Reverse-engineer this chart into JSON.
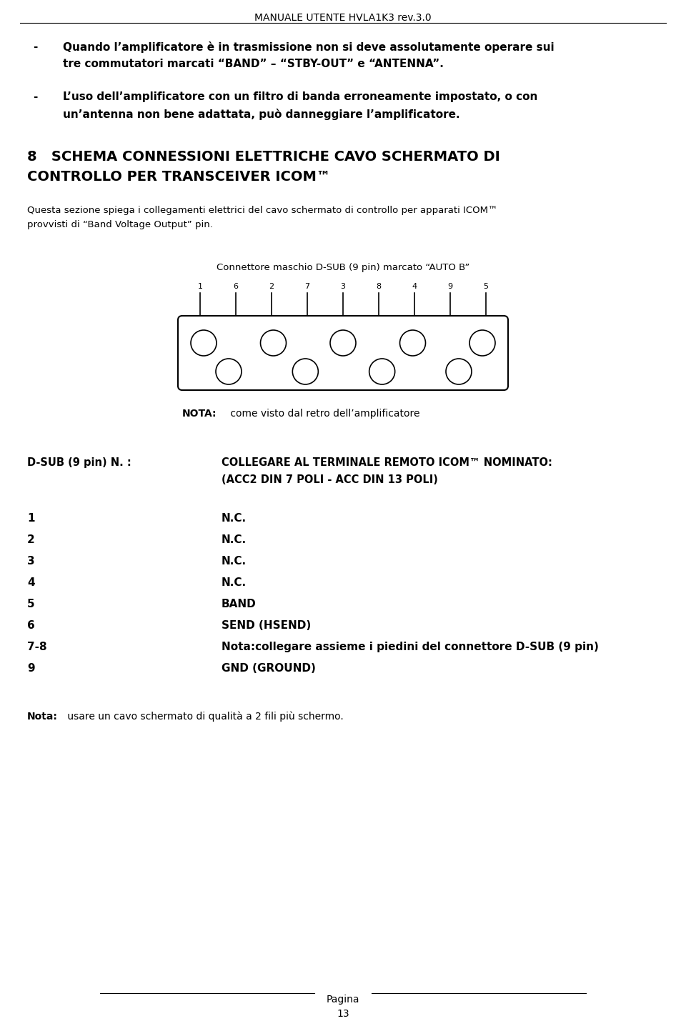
{
  "page_title": "MANUALE UTENTE HVLA1K3 rev.3.0",
  "page_number": "13",
  "bg_color": "#ffffff",
  "text_color": "#000000",
  "bullet1_line1": "Quando l’amplificatore è in trasmissione non si deve assolutamente operare sui",
  "bullet1_line2": "tre commutatori marcati “BAND” – “STBY-OUT” e “ANTENNA”.",
  "bullet2_line1": "L’uso dell’amplificatore con un filtro di banda erroneamente impostato, o con",
  "bullet2_line2": "un’antenna non bene adattata, può danneggiare l’amplificatore.",
  "section_num": "8",
  "section_title_line1": "SCHEMA CONNESSIONI ELETTRICHE CAVO SCHERMATO DI",
  "section_title_line2": "CONTROLLO PER TRANSCEIVER ICOM™",
  "section_desc_line1": "Questa sezione spiega i collegamenti elettrici del cavo schermato di controllo per apparati ICOM™",
  "section_desc_line2": "provvisti di “Band Voltage Output” pin.",
  "connector_label": "Connettore maschio D-SUB (9 pin) marcato “AUTO B”",
  "nota_bold": "NOTA:",
  "nota_text": " come visto dal retro dell’amplificatore",
  "dsub_label_bold": "D-SUB (9 pin) N. :",
  "dsub_desc_line1": "COLLEGARE AL TERMINALE REMOTO ICOM™ NOMINATO:",
  "dsub_desc_line2": "(ACC2 DIN 7 POLI - ACC DIN 13 POLI)",
  "pin_rows": [
    [
      "1",
      "N.C."
    ],
    [
      "2",
      "N.C."
    ],
    [
      "3",
      "N.C."
    ],
    [
      "4",
      "N.C."
    ],
    [
      "5",
      "BAND"
    ],
    [
      "6",
      "SEND (HSEND)"
    ],
    [
      "7-8",
      "Nota:collegare assieme i piedini del connettore D-SUB (9 pin)"
    ],
    [
      "9",
      "GND (GROUND)"
    ]
  ],
  "nota_bottom_bold": "Nota:",
  "nota_bottom_text": " usare un cavo schermato di qualità a 2 fili più schermo.",
  "pin_numbers_top": [
    "1",
    "6",
    "2",
    "7",
    "3",
    "8",
    "4",
    "9",
    "5"
  ],
  "pagina_label": "Pagina"
}
